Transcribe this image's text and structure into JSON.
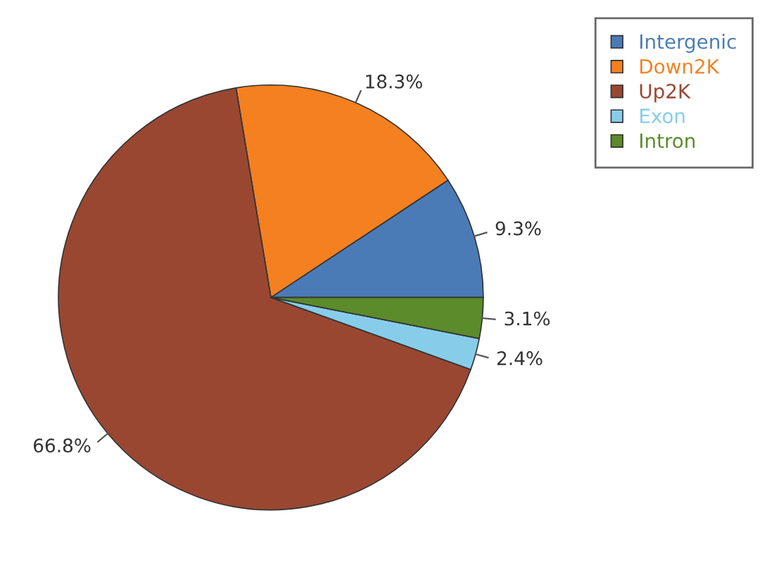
{
  "chart_data": {
    "type": "pie",
    "categories": [
      "Intergenic",
      "Down2K",
      "Up2K",
      "Exon",
      "Intron"
    ],
    "values": [
      9.3,
      18.3,
      66.8,
      2.4,
      3.1
    ],
    "value_labels": [
      "9.3%",
      "18.3%",
      "66.8%",
      "2.4%",
      "3.1%"
    ],
    "colors": [
      "#4b7bb7",
      "#f58020",
      "#9a4732",
      "#87cde9",
      "#5c8b2b"
    ],
    "legend": "top right"
  }
}
